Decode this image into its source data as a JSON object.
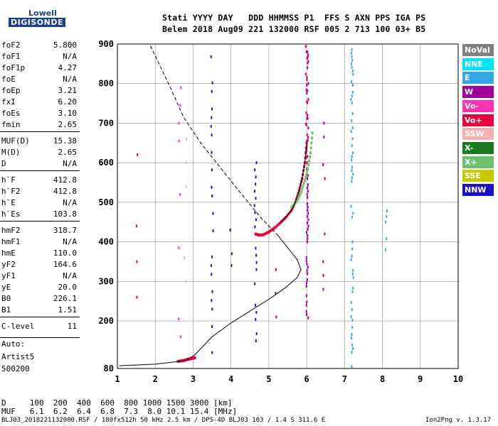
{
  "logo": {
    "line1": "Lowell",
    "line2": "DIGISONDE"
  },
  "header": {
    "line1": "Stati YYYY DAY   DDD HHMMSS P1  FFS S AXN PPS IGA PS",
    "line2": "Belem 2018 Aug09 221 132000 RSF 005 2 713 100 03+ B5"
  },
  "params": [
    {
      "k": "foF2",
      "v": "5.800"
    },
    {
      "k": "foF1",
      "v": "N/A"
    },
    {
      "k": "foF1p",
      "v": "4.27"
    },
    {
      "k": "foE",
      "v": "N/A"
    },
    {
      "k": "foEp",
      "v": "3.21"
    },
    {
      "k": "fxI",
      "v": "6.20"
    },
    {
      "k": "foEs",
      "v": "3.10"
    },
    {
      "k": "fmin",
      "v": "2.65"
    },
    {
      "k": "MUF(D)",
      "v": "15.38"
    },
    {
      "k": "M(D)",
      "v": "2.65"
    },
    {
      "k": "D",
      "v": "N/A"
    },
    {
      "k": "h`F",
      "v": "412.8"
    },
    {
      "k": "h`F2",
      "v": "412.8"
    },
    {
      "k": "h`E",
      "v": "N/A"
    },
    {
      "k": "h`Es",
      "v": "103.8"
    },
    {
      "k": "hmF2",
      "v": "318.7"
    },
    {
      "k": "hmF1",
      "v": "N/A"
    },
    {
      "k": "hmE",
      "v": "110.0"
    },
    {
      "k": "yF2",
      "v": "164.6"
    },
    {
      "k": "yF1",
      "v": "N/A"
    },
    {
      "k": "yE",
      "v": "20.0"
    },
    {
      "k": "B0",
      "v": "226.1"
    },
    {
      "k": "B1",
      "v": "1.51"
    },
    {
      "k": "C-level",
      "v": "11"
    }
  ],
  "auto": {
    "l1": "Auto:",
    "l2": "Artist5",
    "l3": "500200"
  },
  "footer": {
    "d_row": "D     100  200  400  600  800 1000 1500 3000 [km]",
    "muf_row": "MUF   6.1  6.2  6.4  6.8  7.3  8.0 10.1 15.4 [MHz]",
    "file": "BLJ03_2018221132000.RSF / 180fx512h 50 kHz 2.5 km / DPS-4D BLJ03 103 / 1.4 S 311.6 E",
    "version": "Ion2Png v. 1.3.17"
  },
  "legend": [
    {
      "label": "NoVal",
      "color": "#808080"
    },
    {
      "label": "NNE",
      "color": "#00e5ff"
    },
    {
      "label": "E",
      "color": "#33a8e8"
    },
    {
      "label": "W",
      "color": "#a0009a"
    },
    {
      "label": "Vo-",
      "color": "#ff33b4"
    },
    {
      "label": "Vo+",
      "color": "#e8003c"
    },
    {
      "label": "SSW",
      "color": "#f4b0b0"
    },
    {
      "label": "X-",
      "color": "#1e7a1e"
    },
    {
      "label": "X+",
      "color": "#6cc06c"
    },
    {
      "label": "SSE",
      "color": "#c8c800"
    },
    {
      "label": "NNW",
      "color": "#1a10c8"
    }
  ],
  "chart_data": {
    "type": "scatter",
    "xlabel": "",
    "ylabel": "",
    "xlim": [
      1,
      10
    ],
    "ylim": [
      80,
      900
    ],
    "x_ticks": [
      1,
      2,
      3,
      4,
      5,
      6,
      7,
      8,
      9,
      10
    ],
    "y_ticks": [
      80,
      200,
      300,
      400,
      500,
      600,
      700,
      800,
      900
    ],
    "grid": true,
    "profile_solid": [
      [
        1.05,
        87
      ],
      [
        2.0,
        91
      ],
      [
        2.8,
        100
      ],
      [
        3.05,
        115
      ],
      [
        3.5,
        160
      ],
      [
        4.0,
        195
      ],
      [
        4.5,
        225
      ],
      [
        5.0,
        255
      ],
      [
        5.45,
        285
      ],
      [
        5.75,
        310
      ],
      [
        5.85,
        330
      ],
      [
        5.75,
        355
      ],
      [
        5.5,
        385
      ],
      [
        5.25,
        415
      ]
    ],
    "profile_dashed": [
      [
        5.25,
        415
      ],
      [
        4.8,
        460
      ],
      [
        4.2,
        530
      ],
      [
        3.7,
        590
      ],
      [
        3.2,
        650
      ],
      [
        2.75,
        715
      ],
      [
        2.4,
        790
      ],
      [
        2.05,
        860
      ],
      [
        1.85,
        900
      ]
    ],
    "trace_F": [
      [
        4.65,
        420
      ],
      [
        4.75,
        417
      ],
      [
        4.85,
        418
      ],
      [
        5.0,
        425
      ],
      [
        5.15,
        435
      ],
      [
        5.3,
        448
      ],
      [
        5.45,
        462
      ],
      [
        5.6,
        480
      ],
      [
        5.7,
        500
      ],
      [
        5.8,
        530
      ],
      [
        5.88,
        560
      ],
      [
        5.95,
        600
      ],
      [
        6.0,
        650
      ]
    ],
    "trace_Es": [
      [
        2.6,
        98
      ],
      [
        2.75,
        100
      ],
      [
        2.85,
        103
      ],
      [
        2.95,
        105
      ],
      [
        3.05,
        107
      ]
    ],
    "traces": [
      {
        "color": "#1a10c8",
        "x": 3.5,
        "from": 120,
        "to": 900,
        "step": 22
      },
      {
        "color": "#1a10c8",
        "x": 4.65,
        "from": 150,
        "to": 600,
        "step": 18
      },
      {
        "color": "#1a10c8",
        "x": 4.0,
        "from": 250,
        "to": 490,
        "step": 30
      },
      {
        "color": "#a0009a",
        "x": 6.02,
        "from": 200,
        "to": 900,
        "step": 8
      },
      {
        "color": "#e8003c",
        "x": 6.0,
        "from": 600,
        "to": 900,
        "step": 14
      },
      {
        "color": "#33a8e8",
        "x": 7.2,
        "from": 85,
        "to": 900,
        "step": 9
      },
      {
        "color": "#33a8e8",
        "x": 8.1,
        "from": 380,
        "to": 520,
        "step": 14
      },
      {
        "color": "#ff33b4",
        "x": 2.65,
        "from": 160,
        "to": 860,
        "step": 45
      },
      {
        "color": "#f4b0b0",
        "x": 2.8,
        "from": 300,
        "to": 830,
        "step": 60
      },
      {
        "color": "#a0009a",
        "x": 6.45,
        "from": 280,
        "to": 700,
        "step": 35
      },
      {
        "color": "#e8003c",
        "x": 1.5,
        "from": 170,
        "to": 700,
        "step": 90
      },
      {
        "color": "#a0009a",
        "x": 5.2,
        "from": 150,
        "to": 600,
        "step": 60
      }
    ]
  }
}
